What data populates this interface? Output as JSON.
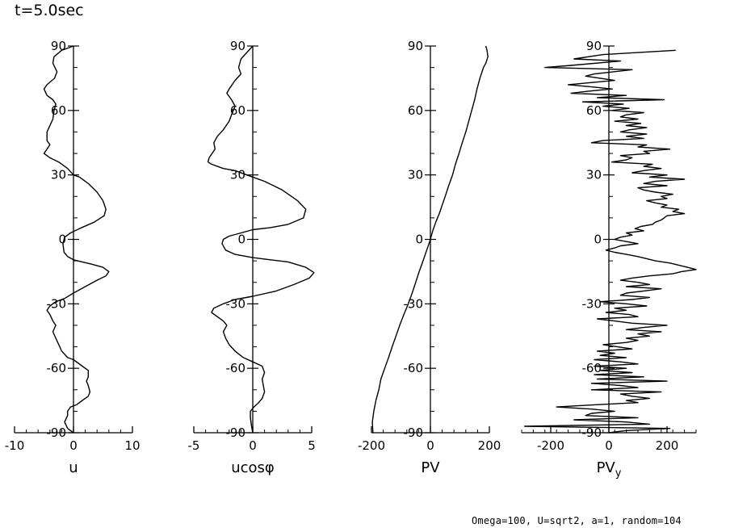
{
  "title": "t=5.0sec",
  "footer": "Omega=100, U=sqrt2, a=1, random=104",
  "chart_data": [
    {
      "type": "line",
      "name": "u",
      "xlabel": "u",
      "xlim": [
        -10,
        10
      ],
      "xticks": [
        -10,
        0,
        10
      ],
      "ylim": [
        -90,
        90
      ],
      "yticks": [
        -90,
        -60,
        -30,
        0,
        30,
        60,
        90
      ],
      "points": [
        [
          0,
          90
        ],
        [
          -2,
          88
        ],
        [
          -3.3,
          85
        ],
        [
          -3.5,
          82
        ],
        [
          -2.8,
          78
        ],
        [
          -3.2,
          75
        ],
        [
          -4.5,
          72
        ],
        [
          -5,
          70
        ],
        [
          -4.5,
          67
        ],
        [
          -3.5,
          65
        ],
        [
          -3,
          63
        ],
        [
          -3.3,
          60
        ],
        [
          -3.5,
          56
        ],
        [
          -4.5,
          50
        ],
        [
          -4.5,
          46
        ],
        [
          -4,
          44
        ],
        [
          -5,
          40
        ],
        [
          -4,
          38
        ],
        [
          -2.5,
          36
        ],
        [
          -1,
          33
        ],
        [
          0,
          30
        ],
        [
          1,
          29
        ],
        [
          2.5,
          26
        ],
        [
          4,
          22
        ],
        [
          5,
          18
        ],
        [
          5.5,
          14
        ],
        [
          5.2,
          11
        ],
        [
          3.5,
          8
        ],
        [
          1,
          5
        ],
        [
          -0.5,
          3
        ],
        [
          -1.5,
          1
        ],
        [
          -1.8,
          -2
        ],
        [
          -1.6,
          -6
        ],
        [
          -1,
          -8
        ],
        [
          0,
          -9.5
        ],
        [
          1.5,
          -10.5
        ],
        [
          3,
          -11.5
        ],
        [
          5,
          -13
        ],
        [
          6,
          -15
        ],
        [
          5.5,
          -17
        ],
        [
          4,
          -19
        ],
        [
          2,
          -22
        ],
        [
          0,
          -25
        ],
        [
          -1.5,
          -27.5
        ],
        [
          -3,
          -29
        ],
        [
          -4,
          -31
        ],
        [
          -4.5,
          -33
        ],
        [
          -4,
          -35
        ],
        [
          -3.5,
          -38
        ],
        [
          -3,
          -40
        ],
        [
          -3.5,
          -43
        ],
        [
          -3,
          -46
        ],
        [
          -2.5,
          -49
        ],
        [
          -2,
          -52
        ],
        [
          -1,
          -55
        ],
        [
          0,
          -56
        ],
        [
          1.5,
          -59
        ],
        [
          2.5,
          -61
        ],
        [
          2.5,
          -64
        ],
        [
          2.2,
          -66
        ],
        [
          2.5,
          -68
        ],
        [
          2.8,
          -71
        ],
        [
          2.5,
          -73
        ],
        [
          1.5,
          -75
        ],
        [
          0.5,
          -77
        ],
        [
          -0.5,
          -78
        ],
        [
          -1,
          -80
        ],
        [
          -1,
          -82
        ],
        [
          -1.5,
          -85
        ],
        [
          -1,
          -88
        ],
        [
          0,
          -90
        ]
      ]
    },
    {
      "type": "line",
      "name": "ucosφ",
      "xlabel": "ucosφ",
      "xlim": [
        -5,
        5
      ],
      "xticks": [
        -5,
        0,
        5
      ],
      "ylim": [
        -90,
        90
      ],
      "yticks": [
        -90,
        -60,
        -30,
        0,
        30,
        60,
        90
      ],
      "points": [
        [
          0,
          90
        ],
        [
          -0.5,
          87
        ],
        [
          -1,
          84
        ],
        [
          -1.2,
          80
        ],
        [
          -1,
          77
        ],
        [
          -1.5,
          74
        ],
        [
          -2,
          70
        ],
        [
          -2.2,
          68
        ],
        [
          -1.8,
          65
        ],
        [
          -1.5,
          62
        ],
        [
          -1.8,
          58
        ],
        [
          -2,
          55
        ],
        [
          -2.5,
          51
        ],
        [
          -3,
          48
        ],
        [
          -3.3,
          45
        ],
        [
          -3.2,
          42
        ],
        [
          -3.7,
          38
        ],
        [
          -3.8,
          36
        ],
        [
          -3.5,
          35
        ],
        [
          -2.5,
          33
        ],
        [
          -1.5,
          32
        ],
        [
          -0.5,
          30
        ],
        [
          0,
          29
        ],
        [
          1,
          27
        ],
        [
          2.5,
          23
        ],
        [
          3.8,
          18
        ],
        [
          4.5,
          14
        ],
        [
          4.3,
          10
        ],
        [
          3,
          7
        ],
        [
          1.5,
          5.5
        ],
        [
          0,
          4.5
        ],
        [
          -1,
          3
        ],
        [
          -2,
          1.5
        ],
        [
          -2.5,
          0
        ],
        [
          -2.6,
          -2
        ],
        [
          -2.3,
          -5
        ],
        [
          -1.5,
          -7
        ],
        [
          0,
          -8.5
        ],
        [
          1.5,
          -9.5
        ],
        [
          3,
          -10.5
        ],
        [
          4.5,
          -13
        ],
        [
          5.2,
          -15.5
        ],
        [
          4.8,
          -18
        ],
        [
          3.5,
          -21
        ],
        [
          2,
          -24
        ],
        [
          0,
          -26.5
        ],
        [
          -1.5,
          -28
        ],
        [
          -2.5,
          -30
        ],
        [
          -3.3,
          -32
        ],
        [
          -3.5,
          -34
        ],
        [
          -3,
          -36
        ],
        [
          -2.5,
          -38
        ],
        [
          -2.2,
          -40
        ],
        [
          -2.5,
          -43
        ],
        [
          -2.3,
          -46
        ],
        [
          -2,
          -49
        ],
        [
          -1.5,
          -52
        ],
        [
          -0.8,
          -55
        ],
        [
          0,
          -57
        ],
        [
          0.8,
          -59
        ],
        [
          1,
          -62
        ],
        [
          0.8,
          -65
        ],
        [
          0.9,
          -68
        ],
        [
          1,
          -71
        ],
        [
          0.8,
          -74
        ],
        [
          0.5,
          -76
        ],
        [
          0.1,
          -78
        ],
        [
          -0.2,
          -80
        ],
        [
          -0.2,
          -83
        ],
        [
          -0.1,
          -87
        ],
        [
          0,
          -90
        ]
      ]
    },
    {
      "type": "line",
      "name": "PV",
      "xlabel": "PV",
      "xlim": [
        -200,
        200
      ],
      "xticks": [
        -200,
        0,
        200
      ],
      "ylim": [
        -90,
        90
      ],
      "yticks": [
        -90,
        -60,
        -30,
        0,
        30,
        60,
        90
      ],
      "points": [
        [
          -195,
          -90
        ],
        [
          -197,
          -85
        ],
        [
          -192,
          -80
        ],
        [
          -185,
          -75
        ],
        [
          -175,
          -70
        ],
        [
          -168,
          -65
        ],
        [
          -155,
          -60
        ],
        [
          -142,
          -55
        ],
        [
          -130,
          -50
        ],
        [
          -117,
          -45
        ],
        [
          -104,
          -40
        ],
        [
          -90,
          -35
        ],
        [
          -75,
          -30
        ],
        [
          -62,
          -25
        ],
        [
          -50,
          -20
        ],
        [
          -38,
          -15
        ],
        [
          -30,
          -12
        ],
        [
          -20,
          -8
        ],
        [
          -10,
          -4
        ],
        [
          0,
          0
        ],
        [
          8,
          4
        ],
        [
          18,
          8
        ],
        [
          30,
          12
        ],
        [
          40,
          16
        ],
        [
          50,
          20
        ],
        [
          62,
          25
        ],
        [
          75,
          30
        ],
        [
          85,
          35
        ],
        [
          97,
          40
        ],
        [
          108,
          45
        ],
        [
          120,
          50
        ],
        [
          130,
          55
        ],
        [
          140,
          60
        ],
        [
          150,
          65
        ],
        [
          158,
          70
        ],
        [
          168,
          75
        ],
        [
          180,
          80
        ],
        [
          188,
          82
        ],
        [
          195,
          85
        ],
        [
          192,
          88
        ],
        [
          188,
          90
        ]
      ]
    },
    {
      "type": "line",
      "name": "PVy",
      "xlabel": "PV",
      "xlabel_sub": "y",
      "xlim": [
        -300,
        300
      ],
      "xticks": [
        -200,
        0,
        200
      ],
      "ylim": [
        -90,
        90
      ],
      "yticks": [
        -90,
        -60,
        -30,
        0,
        30,
        60,
        90
      ],
      "points": [
        [
          230,
          88
        ],
        [
          -20,
          86
        ],
        [
          -120,
          84
        ],
        [
          40,
          83
        ],
        [
          -130,
          81
        ],
        [
          -220,
          80
        ],
        [
          80,
          79
        ],
        [
          -50,
          77
        ],
        [
          -80,
          76
        ],
        [
          20,
          74
        ],
        [
          -140,
          72
        ],
        [
          -60,
          71
        ],
        [
          10,
          70
        ],
        [
          -70,
          69
        ],
        [
          -130,
          68
        ],
        [
          60,
          67
        ],
        [
          -40,
          66
        ],
        [
          190,
          65
        ],
        [
          -90,
          64
        ],
        [
          50,
          63
        ],
        [
          -20,
          62
        ],
        [
          70,
          61
        ],
        [
          10,
          60
        ],
        [
          120,
          59
        ],
        [
          60,
          58
        ],
        [
          40,
          57
        ],
        [
          100,
          56
        ],
        [
          20,
          55
        ],
        [
          110,
          54
        ],
        [
          60,
          53
        ],
        [
          130,
          52
        ],
        [
          70,
          51
        ],
        [
          40,
          50
        ],
        [
          130,
          49
        ],
        [
          60,
          48
        ],
        [
          120,
          47
        ],
        [
          -20,
          46
        ],
        [
          -60,
          45
        ],
        [
          130,
          44
        ],
        [
          100,
          43
        ],
        [
          210,
          42
        ],
        [
          120,
          41
        ],
        [
          140,
          40
        ],
        [
          40,
          39
        ],
        [
          80,
          38
        ],
        [
          60,
          37
        ],
        [
          10,
          36
        ],
        [
          150,
          35
        ],
        [
          120,
          34
        ],
        [
          180,
          33
        ],
        [
          120,
          32
        ],
        [
          80,
          31
        ],
        [
          200,
          30
        ],
        [
          140,
          29
        ],
        [
          260,
          28
        ],
        [
          160,
          27
        ],
        [
          120,
          26
        ],
        [
          200,
          25
        ],
        [
          100,
          24
        ],
        [
          120,
          23
        ],
        [
          160,
          22
        ],
        [
          220,
          21
        ],
        [
          180,
          20
        ],
        [
          200,
          19
        ],
        [
          130,
          18
        ],
        [
          160,
          17
        ],
        [
          200,
          16
        ],
        [
          180,
          15
        ],
        [
          240,
          14
        ],
        [
          220,
          13
        ],
        [
          260,
          12
        ],
        [
          200,
          11
        ],
        [
          190,
          10
        ],
        [
          180,
          9
        ],
        [
          160,
          8
        ],
        [
          150,
          7
        ],
        [
          110,
          6
        ],
        [
          90,
          5
        ],
        [
          120,
          4
        ],
        [
          60,
          3
        ],
        [
          80,
          2
        ],
        [
          40,
          1
        ],
        [
          20,
          0
        ],
        [
          60,
          -1
        ],
        [
          100,
          -2
        ],
        [
          40,
          -3
        ],
        [
          20,
          -4
        ],
        [
          -10,
          -5
        ],
        [
          20,
          -6
        ],
        [
          60,
          -7
        ],
        [
          100,
          -8
        ],
        [
          130,
          -9
        ],
        [
          160,
          -10
        ],
        [
          210,
          -11
        ],
        [
          240,
          -12
        ],
        [
          270,
          -13
        ],
        [
          300,
          -14
        ],
        [
          250,
          -15
        ],
        [
          220,
          -16
        ],
        [
          140,
          -17
        ],
        [
          80,
          -18
        ],
        [
          40,
          -19
        ],
        [
          100,
          -20
        ],
        [
          140,
          -21
        ],
        [
          60,
          -22
        ],
        [
          180,
          -23
        ],
        [
          120,
          -24
        ],
        [
          60,
          -25
        ],
        [
          40,
          -26
        ],
        [
          140,
          -27
        ],
        [
          80,
          -28
        ],
        [
          -30,
          -29
        ],
        [
          60,
          -30
        ],
        [
          130,
          -31
        ],
        [
          20,
          -32
        ],
        [
          60,
          -33
        ],
        [
          -10,
          -34
        ],
        [
          70,
          -35
        ],
        [
          100,
          -36
        ],
        [
          -40,
          -37
        ],
        [
          20,
          -38
        ],
        [
          80,
          -39
        ],
        [
          200,
          -40
        ],
        [
          120,
          -41
        ],
        [
          60,
          -42
        ],
        [
          180,
          -43
        ],
        [
          100,
          -44
        ],
        [
          140,
          -45
        ],
        [
          60,
          -46
        ],
        [
          100,
          -47
        ],
        [
          60,
          -48
        ],
        [
          -20,
          -49
        ],
        [
          30,
          -50
        ],
        [
          80,
          -51
        ],
        [
          -40,
          -52
        ],
        [
          20,
          -53
        ],
        [
          -30,
          -54
        ],
        [
          60,
          -55
        ],
        [
          -50,
          -56
        ],
        [
          40,
          -57
        ],
        [
          100,
          -58
        ],
        [
          -50,
          -59
        ],
        [
          60,
          -60
        ],
        [
          -30,
          -61
        ],
        [
          80,
          -62
        ],
        [
          -50,
          -63
        ],
        [
          120,
          -64
        ],
        [
          -40,
          -65
        ],
        [
          200,
          -66
        ],
        [
          -60,
          -67
        ],
        [
          40,
          -68
        ],
        [
          100,
          -69
        ],
        [
          -60,
          -70
        ],
        [
          180,
          -71
        ],
        [
          40,
          -72
        ],
        [
          80,
          -73
        ],
        [
          140,
          -74
        ],
        [
          60,
          -75
        ],
        [
          100,
          -76
        ],
        [
          -50,
          -77
        ],
        [
          -180,
          -78
        ],
        [
          -60,
          -79
        ],
        [
          20,
          -80
        ],
        [
          -60,
          -81
        ],
        [
          -80,
          -82
        ],
        [
          100,
          -83
        ],
        [
          -120,
          -84
        ],
        [
          60,
          -85
        ],
        [
          140,
          -86
        ],
        [
          -290,
          -87
        ],
        [
          210,
          -88
        ],
        [
          60,
          -89
        ],
        [
          0,
          -90
        ]
      ]
    }
  ]
}
